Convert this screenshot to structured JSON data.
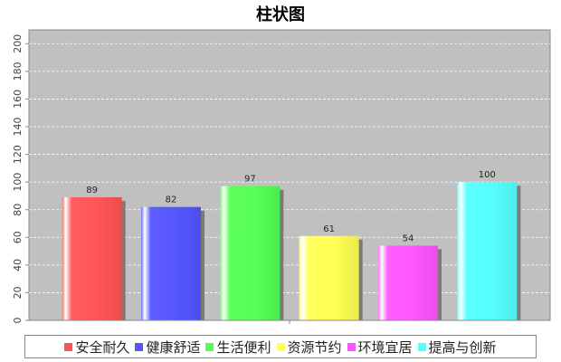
{
  "chart_data": {
    "type": "bar",
    "title": "柱状图",
    "xlabel": "",
    "ylabel": "",
    "ylim": [
      0,
      210
    ],
    "yticks": [
      0,
      20,
      40,
      60,
      80,
      100,
      120,
      140,
      160,
      180,
      200
    ],
    "categories": [
      "安全耐久",
      "健康舒适",
      "生活便利",
      "资源节约",
      "环境宜居",
      "提高与创新"
    ],
    "values": [
      89,
      82,
      97,
      61,
      54,
      100
    ],
    "colors": [
      "#ff5555",
      "#5555ff",
      "#55ff55",
      "#ffff55",
      "#ff55ff",
      "#55ffff"
    ],
    "grid": true,
    "legend_position": "bottom",
    "plot_background": "#c0c0c0"
  }
}
